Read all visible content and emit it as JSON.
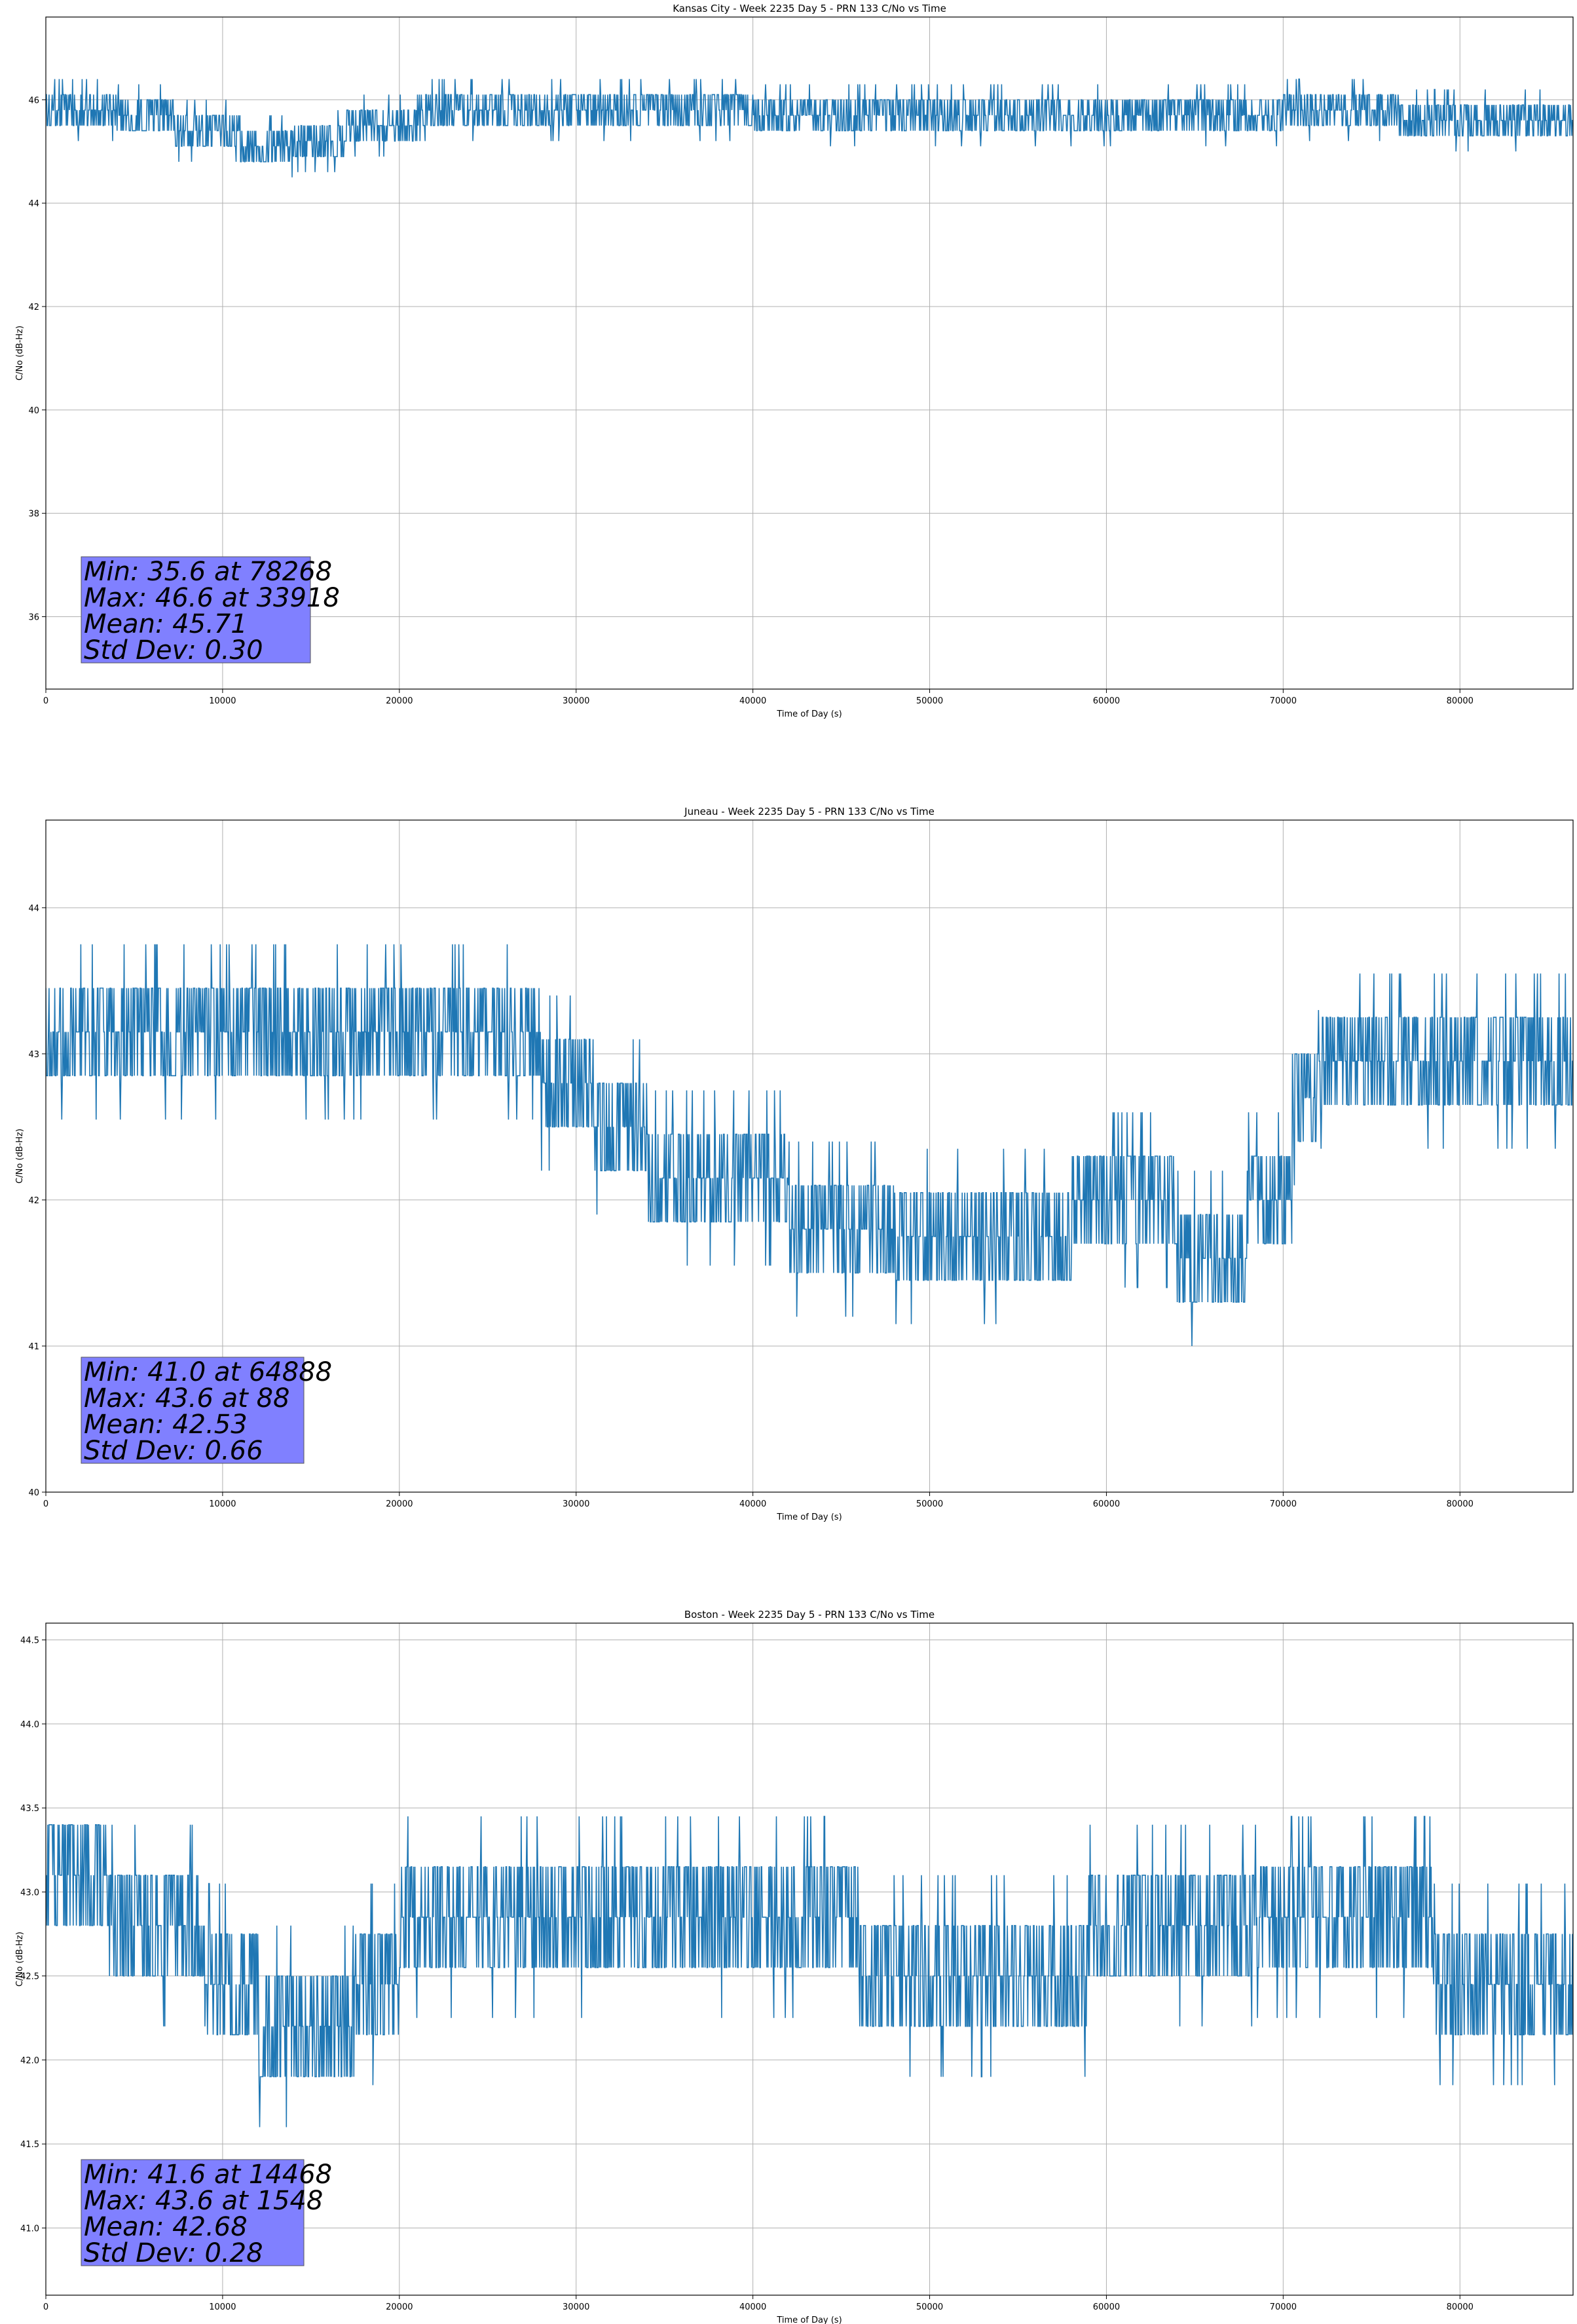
{
  "figure": {
    "background": "#ffffff",
    "line_color": "#1f77b4",
    "grid_color": "#b0b0b0",
    "stats_box_color": "#8080ff"
  },
  "chart_data": [
    {
      "type": "line",
      "title": "Kansas City - Week 2235 Day 5 - PRN 133 C/No vs Time",
      "xlabel": "Time of Day (s)",
      "ylabel": "C/No (dB-Hz)",
      "xlim": [
        0,
        86400
      ],
      "ylim": [
        34.6,
        47.6
      ],
      "xticks": [
        0,
        10000,
        20000,
        30000,
        40000,
        50000,
        60000,
        70000,
        80000
      ],
      "xtick_labels": [
        "0",
        "10000",
        "20000",
        "30000",
        "40000",
        "50000",
        "60000",
        "70000",
        "80000"
      ],
      "yticks": [
        36,
        38,
        40,
        42,
        44,
        46
      ],
      "ytick_labels": [
        "36",
        "38",
        "40",
        "42",
        "44",
        "46"
      ],
      "grid": true,
      "legend": "none",
      "series": [
        {
          "x": [
            0,
            4000,
            4000,
            7300,
            7300,
            11000,
            11000,
            14000,
            14000,
            17000,
            17000,
            21000,
            21000,
            40000,
            40000,
            70000,
            70000,
            76500,
            76500,
            86400
          ],
          "y": [
            45.8,
            45.8,
            45.7,
            45.7,
            45.4,
            45.4,
            45.1,
            45.1,
            45.2,
            45.2,
            45.5,
            45.5,
            45.8,
            45.8,
            45.7,
            45.7,
            45.8,
            45.8,
            45.6,
            45.6
          ]
        }
      ],
      "stats": {
        "min_text": "Min: 35.6 at 78268",
        "max_text": "Max: 46.6 at 33918",
        "mean_text": "Mean: 45.71",
        "std_text": "Std Dev: 0.30"
      }
    },
    {
      "type": "line",
      "title": "Juneau - Week 2235 Day 5 - PRN 133 C/No vs Time",
      "xlabel": "Time of Day (s)",
      "ylabel": "C/No (dB-Hz)",
      "xlim": [
        0,
        86400
      ],
      "ylim": [
        40.0,
        44.6
      ],
      "xticks": [
        0,
        10000,
        20000,
        30000,
        40000,
        50000,
        60000,
        70000,
        80000
      ],
      "xtick_labels": [
        "0",
        "10000",
        "20000",
        "30000",
        "40000",
        "50000",
        "60000",
        "70000",
        "80000"
      ],
      "yticks": [
        40,
        41,
        42,
        43,
        44
      ],
      "ytick_labels": [
        "40",
        "41",
        "42",
        "43",
        "44"
      ],
      "grid": true,
      "legend": "none",
      "series": [
        {
          "x": [
            0,
            28000,
            28000,
            31000,
            31000,
            34000,
            34000,
            42000,
            42000,
            48000,
            48000,
            58000,
            58000,
            64000,
            64000,
            68000,
            68000,
            70500,
            70500,
            72000,
            72000,
            86400
          ],
          "y": [
            43.15,
            43.15,
            42.8,
            42.8,
            42.5,
            42.5,
            42.15,
            42.15,
            41.8,
            41.8,
            41.75,
            41.75,
            42.0,
            42.0,
            41.6,
            41.6,
            42.0,
            42.0,
            42.7,
            42.7,
            42.95,
            42.95
          ]
        }
      ],
      "stats": {
        "min_text": "Min: 41.0 at 64888",
        "max_text": "Max: 43.6 at 88",
        "mean_text": "Mean: 42.53",
        "std_text": "Std Dev: 0.66"
      }
    },
    {
      "type": "line",
      "title": "Boston - Week 2235 Day 5 - PRN 133 C/No vs Time",
      "xlabel": "Time of Day (s)",
      "ylabel": "C/No (dB-Hz)",
      "xlim": [
        0,
        86400
      ],
      "ylim": [
        40.6,
        44.6
      ],
      "xticks": [
        0,
        10000,
        20000,
        30000,
        40000,
        50000,
        60000,
        70000,
        80000
      ],
      "xtick_labels": [
        "0",
        "10000",
        "20000",
        "30000",
        "40000",
        "50000",
        "60000",
        "70000",
        "80000"
      ],
      "yticks": [
        41.0,
        41.5,
        42.0,
        42.5,
        43.0,
        43.5,
        44.0,
        44.5
      ],
      "ytick_labels": [
        "41.0",
        "41.5",
        "42.0",
        "42.5",
        "43.0",
        "43.5",
        "44.0",
        "44.5"
      ],
      "grid": true,
      "legend": "none",
      "series": [
        {
          "x": [
            0,
            3500,
            3500,
            9000,
            9000,
            12000,
            12000,
            17500,
            17500,
            20000,
            20000,
            46000,
            46000,
            59000,
            59000,
            68500,
            68500,
            78500,
            78500,
            86400
          ],
          "y": [
            43.1,
            43.1,
            42.8,
            42.8,
            42.45,
            42.45,
            42.2,
            42.2,
            42.45,
            42.45,
            42.85,
            42.85,
            42.5,
            42.5,
            42.8,
            42.8,
            42.85,
            42.85,
            42.45,
            42.45
          ]
        }
      ],
      "stats": {
        "min_text": "Min: 41.6 at 14468",
        "max_text": "Max: 43.6 at 1548",
        "mean_text": "Mean: 42.68",
        "std_text": "Std Dev: 0.28"
      }
    }
  ]
}
